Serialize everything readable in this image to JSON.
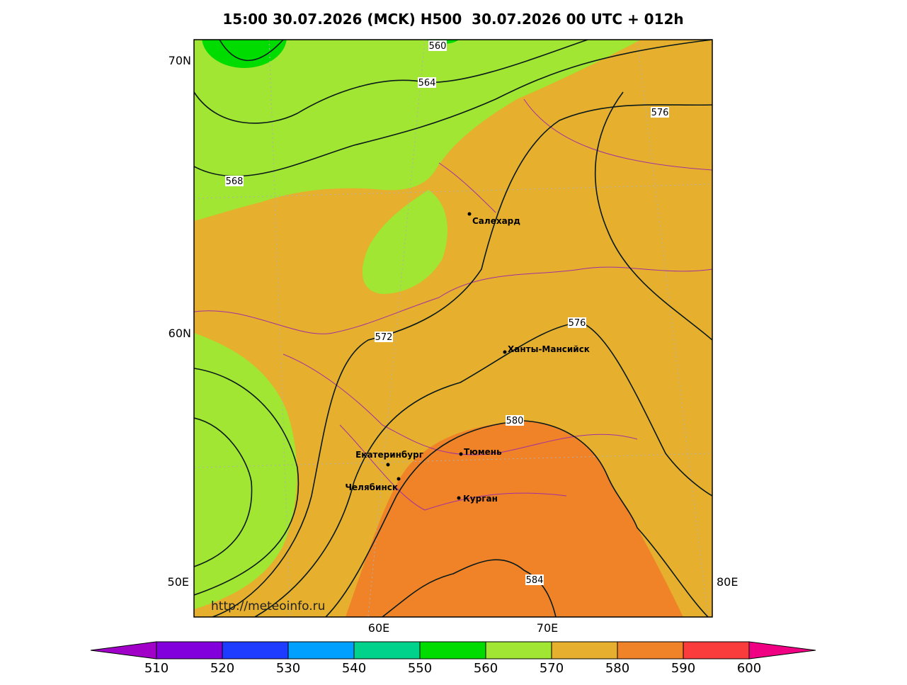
{
  "title": "15:00 30.07.2026 (MCK) H500  30.07.2026 00 UTC + 012h",
  "axis_labels": {
    "left": [
      "70N",
      "60N",
      "50E"
    ],
    "right": [
      "80E"
    ],
    "bottom": [
      "60E",
      "70E"
    ]
  },
  "contour_labels": [
    560,
    564,
    568,
    572,
    576,
    576,
    580,
    584
  ],
  "cities": [
    "Салехард",
    "Ханты-Мансийск",
    "Екатеринбург",
    "Тюмень",
    "Челябинск",
    "Курган"
  ],
  "source": "http://meteoinfo.ru",
  "colorbar": {
    "ticks": [
      510,
      520,
      530,
      540,
      550,
      560,
      570,
      580,
      590,
      600
    ],
    "colors": [
      "#a000c8",
      "#8200dc",
      "#1e3cff",
      "#00a0ff",
      "#00d28c",
      "#00dc00",
      "#a0e632",
      "#e6af2d",
      "#f08228",
      "#fa3c3c",
      "#f00082"
    ]
  }
}
